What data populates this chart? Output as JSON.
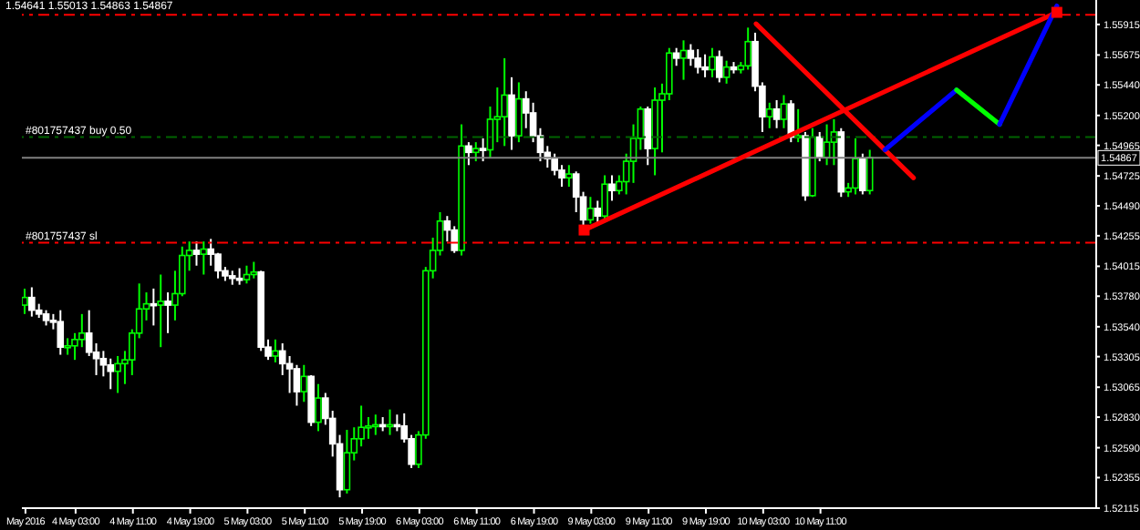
{
  "chart_data": {
    "type": "candlestick",
    "title": "1.54641 1.55013 1.54863 1.54867",
    "categories": [
      "May 2016",
      null,
      null,
      null,
      null,
      null,
      null,
      "4 May 03:00",
      null,
      null,
      null,
      null,
      null,
      null,
      null,
      "4 May 11:00",
      null,
      null,
      null,
      null,
      null,
      null,
      null,
      "4 May 19:00",
      null,
      null,
      null,
      null,
      null,
      null,
      null,
      "5 May 03:00",
      null,
      null,
      null,
      null,
      null,
      null,
      null,
      "5 May 11:00",
      null,
      null,
      null,
      null,
      null,
      null,
      null,
      "5 May 19:00",
      null,
      null,
      null,
      null,
      null,
      null,
      null,
      "6 May 03:00",
      null,
      null,
      null,
      null,
      null,
      null,
      null,
      "6 May 11:00",
      null,
      null,
      null,
      null,
      null,
      null,
      null,
      "6 May 19:00",
      null,
      null,
      null,
      null,
      null,
      null,
      null,
      "9 May 03:00",
      null,
      null,
      null,
      null,
      null,
      null,
      null,
      "9 May 11:00",
      null,
      null,
      null,
      null,
      null,
      null,
      null,
      "9 May 19:00",
      null,
      null,
      null,
      null,
      null,
      null,
      null,
      "10 May 03:00",
      null,
      null,
      null,
      null,
      null,
      null,
      null,
      "10 May 11:00",
      null,
      null,
      null,
      null,
      null,
      null,
      null,
      null,
      null,
      null,
      null,
      null,
      null,
      null,
      null,
      null,
      null,
      null,
      null,
      null,
      null,
      null,
      null,
      null,
      null,
      null,
      null,
      null,
      null,
      null,
      null,
      null,
      null,
      null,
      null,
      null,
      null,
      null
    ],
    "ylim": [
      1.52115,
      1.56107
    ],
    "yticks": [
      1.52115,
      1.52355,
      {
        "value": 1.5259,
        "label": "1.52590"
      },
      {
        "value": 1.5283,
        "label": "1.52830"
      },
      1.53065,
      1.53305,
      {
        "value": 1.5354,
        "label": "1.53540"
      },
      {
        "value": 1.5378,
        "label": "1.53780"
      },
      1.54015,
      1.54255,
      {
        "value": 1.5449,
        "label": "1.54490"
      },
      1.54725,
      1.54965,
      {
        "value": 1.552,
        "label": "1.55200"
      },
      {
        "value": 1.5544,
        "label": "1.55440"
      },
      1.55675,
      1.55915
    ],
    "series": [
      {
        "colors": [
          "#00ff00",
          "#ffffff",
          "#ffffff",
          "#ffffff",
          "#ffffff",
          "#ffffff",
          "#00ff00",
          "#00ff00",
          "#00ff00",
          "#ffffff",
          "#ffffff",
          "#ffffff",
          "#ffffff",
          "#00ff00",
          "#00ff00",
          "#00ff00",
          "#00ff00",
          "#00ff00",
          "#ffffff",
          "#00ff00",
          "#ffffff",
          "#00ff00",
          "#00ff00",
          "#00ff00",
          "#ffffff",
          "#00ff00",
          "#ffffff",
          "#ffffff",
          "#ffffff",
          "#ffffff",
          "#ffffff",
          "#00ff00",
          "#00ff00",
          "#ffffff",
          "#ffffff",
          "#00ff00",
          "#ffffff",
          "#ffffff",
          "#ffffff",
          "#00ff00",
          "#ffffff",
          "#00ff00",
          "#ffffff",
          "#ffffff",
          "#ffffff",
          "#00ff00",
          "#00ff00",
          "#00ff00",
          "#00ff00",
          "#00ff00",
          "#ffffff",
          "#00ff00",
          "#ffffff",
          "#ffffff",
          "#ffffff",
          "#00ff00",
          "#00ff00",
          "#00ff00",
          "#00ff00",
          "#ffffff",
          "#ffffff",
          "#00ff00",
          "#ffffff",
          "#00ff00",
          "#ffffff",
          "#00ff00",
          "#00ff00",
          "#00ff00",
          "#ffffff",
          "#00ff00",
          "#ffffff",
          "#ffffff",
          "#ffffff",
          "#ffffff",
          "#ffffff",
          "#ffffff",
          "#00ff00",
          "#ffffff",
          "#ffffff",
          "#00ff00",
          "#ffffff",
          "#00ff00",
          "#ffffff",
          "#00ff00",
          "#00ff00",
          "#00ff00",
          "#00ff00",
          "#ffffff",
          "#00ff00",
          "#00ff00",
          "#00ff00",
          "#ffffff",
          "#00ff00",
          "#ffffff",
          "#ffffff",
          "#ffffff",
          "#00ff00",
          "#ffffff",
          "#00ff00",
          "#ffffff",
          "#00ff00",
          "#00ff00",
          "#ffffff",
          "#ffffff",
          "#00ff00",
          "#ffffff",
          "#00ff00",
          "#ffffff",
          "#00ff00",
          "#ffffff",
          "#00ff00",
          "#ffffff",
          "#00ff00",
          "#00ff00",
          "#ffffff",
          "#00ff00",
          "#00ff00",
          "#ffffff",
          "#00ff00",
          null,
          null,
          null,
          null,
          null,
          null,
          null,
          null,
          null,
          null,
          null,
          null,
          null,
          null,
          null,
          null,
          null,
          null,
          null,
          null,
          null,
          null,
          null,
          null,
          null,
          null,
          null,
          null,
          null,
          null,
          null
        ],
        "ohlc": [
          [
            1.5371,
            1.5384,
            1.5364,
            1.5377
          ],
          [
            1.5377,
            1.5385,
            1.5362,
            1.5367
          ],
          [
            1.5367,
            1.5372,
            1.5361,
            1.5364
          ],
          [
            1.5364,
            1.5367,
            1.5355,
            1.5359
          ],
          [
            1.5359,
            1.5364,
            1.5352,
            1.5358
          ],
          [
            1.5358,
            1.5367,
            1.5332,
            1.5338
          ],
          [
            1.5338,
            1.5345,
            1.5332,
            1.5339
          ],
          [
            1.5339,
            1.5349,
            1.5328,
            1.5344
          ],
          [
            1.5344,
            1.5364,
            1.5338,
            1.5349
          ],
          [
            1.5349,
            1.5367,
            1.5331,
            1.5334
          ],
          [
            1.5334,
            1.5341,
            1.5316,
            1.5329
          ],
          [
            1.5329,
            1.5335,
            1.5315,
            1.5324
          ],
          [
            1.5324,
            1.5329,
            1.5305,
            1.5319
          ],
          [
            1.5319,
            1.5331,
            1.5302,
            1.5325
          ],
          [
            1.5325,
            1.5335,
            1.5309,
            1.5328
          ],
          [
            1.5328,
            1.5352,
            1.5316,
            1.5349
          ],
          [
            1.5349,
            1.5388,
            1.5345,
            1.5368
          ],
          [
            1.5368,
            1.5381,
            1.5359,
            1.5372
          ],
          [
            1.5372,
            1.5384,
            1.5355,
            1.5371
          ],
          [
            1.5371,
            1.5395,
            1.5338,
            1.5374
          ],
          [
            1.5374,
            1.5381,
            1.5349,
            1.5371
          ],
          [
            1.5371,
            1.5398,
            1.5359,
            1.538
          ],
          [
            1.538,
            1.5417,
            1.5378,
            1.541
          ],
          [
            1.541,
            1.5421,
            1.5398,
            1.5414
          ],
          [
            1.5414,
            1.5421,
            1.5402,
            1.5411
          ],
          [
            1.5411,
            1.5421,
            1.5395,
            1.5415
          ],
          [
            1.5415,
            1.5423,
            1.5402,
            1.5411
          ],
          [
            1.5411,
            1.5412,
            1.5392,
            1.5398
          ],
          [
            1.5398,
            1.5401,
            1.539,
            1.5394
          ],
          [
            1.5394,
            1.5398,
            1.5387,
            1.5392
          ],
          [
            1.5392,
            1.54,
            1.5387,
            1.5391
          ],
          [
            1.5391,
            1.5402,
            1.5388,
            1.5395
          ],
          [
            1.5395,
            1.5405,
            1.5392,
            1.5397
          ],
          [
            1.5397,
            1.5398,
            1.5335,
            1.5338
          ],
          [
            1.5338,
            1.5344,
            1.5328,
            1.5331
          ],
          [
            1.5331,
            1.5344,
            1.5326,
            1.5335
          ],
          [
            1.5335,
            1.5341,
            1.5316,
            1.5325
          ],
          [
            1.5325,
            1.5331,
            1.5302,
            1.5321
          ],
          [
            1.5321,
            1.5324,
            1.5292,
            1.5303
          ],
          [
            1.5303,
            1.5324,
            1.5295,
            1.5315
          ],
          [
            1.5315,
            1.5316,
            1.5276,
            1.5279
          ],
          [
            1.5279,
            1.5309,
            1.5272,
            1.5298
          ],
          [
            1.5298,
            1.5302,
            1.5277,
            1.5282
          ],
          [
            1.5282,
            1.5288,
            1.5252,
            1.5262
          ],
          [
            1.5262,
            1.5269,
            1.522,
            1.5226
          ],
          [
            1.5226,
            1.5273,
            1.5223,
            1.5255
          ],
          [
            1.5255,
            1.5275,
            1.5249,
            1.5266
          ],
          [
            1.5266,
            1.5292,
            1.526,
            1.5275
          ],
          [
            1.5275,
            1.5283,
            1.5266,
            1.5276
          ],
          [
            1.5276,
            1.5285,
            1.5269,
            1.5277
          ],
          [
            1.5277,
            1.5283,
            1.5272,
            1.5276
          ],
          [
            1.5276,
            1.5289,
            1.5269,
            1.5277
          ],
          [
            1.5277,
            1.5285,
            1.5272,
            1.5276
          ],
          [
            1.5276,
            1.5286,
            1.5263,
            1.5266
          ],
          [
            1.5266,
            1.5269,
            1.5243,
            1.5246
          ],
          [
            1.5246,
            1.5272,
            1.5243,
            1.5269
          ],
          [
            1.5269,
            1.5401,
            1.5266,
            1.5398
          ],
          [
            1.5398,
            1.5424,
            1.5392,
            1.5414
          ],
          [
            1.5414,
            1.5444,
            1.541,
            1.5437
          ],
          [
            1.5437,
            1.5441,
            1.5421,
            1.543
          ],
          [
            1.543,
            1.5433,
            1.5412,
            1.5414
          ],
          [
            1.5414,
            1.5513,
            1.541,
            1.5496
          ],
          [
            1.5496,
            1.5499,
            1.5481,
            1.5491
          ],
          [
            1.5491,
            1.5499,
            1.5484,
            1.5494
          ],
          [
            1.5494,
            1.5502,
            1.5484,
            1.5493
          ],
          [
            1.5493,
            1.5527,
            1.5487,
            1.5517
          ],
          [
            1.5517,
            1.5542,
            1.5499,
            1.5519
          ],
          [
            1.5519,
            1.5565,
            1.5496,
            1.5536
          ],
          [
            1.5536,
            1.555,
            1.5493,
            1.5504
          ],
          [
            1.5504,
            1.5546,
            1.5499,
            1.5533
          ],
          [
            1.5533,
            1.5539,
            1.551,
            1.5522
          ],
          [
            1.5522,
            1.553,
            1.5499,
            1.5504
          ],
          [
            1.5504,
            1.551,
            1.5484,
            1.5491
          ],
          [
            1.5491,
            1.5496,
            1.5479,
            1.5486
          ],
          [
            1.5486,
            1.549,
            1.5473,
            1.5477
          ],
          [
            1.5477,
            1.5481,
            1.5464,
            1.5471
          ],
          [
            1.5471,
            1.5481,
            1.5464,
            1.5474
          ],
          [
            1.5474,
            1.5476,
            1.5444,
            1.5456
          ],
          [
            1.5456,
            1.546,
            1.5433,
            1.5438
          ],
          [
            1.5438,
            1.5456,
            1.5435,
            1.5447
          ],
          [
            1.5447,
            1.5453,
            1.5435,
            1.5441
          ],
          [
            1.5441,
            1.5473,
            1.5438,
            1.5466
          ],
          [
            1.5466,
            1.5473,
            1.5453,
            1.5461
          ],
          [
            1.5461,
            1.5473,
            1.5458,
            1.5468
          ],
          [
            1.5468,
            1.549,
            1.5458,
            1.5484
          ],
          [
            1.5484,
            1.5513,
            1.5467,
            1.5502
          ],
          [
            1.5502,
            1.5527,
            1.5493,
            1.5525
          ],
          [
            1.5525,
            1.5527,
            1.5481,
            1.5494
          ],
          [
            1.5494,
            1.5542,
            1.5473,
            1.5532
          ],
          [
            1.5532,
            1.5545,
            1.5491,
            1.5537
          ],
          [
            1.5537,
            1.5573,
            1.5532,
            1.5569
          ],
          [
            1.5569,
            1.5573,
            1.5559,
            1.5565
          ],
          [
            1.5565,
            1.5579,
            1.5548,
            1.5571
          ],
          [
            1.5571,
            1.5576,
            1.5559,
            1.5565
          ],
          [
            1.5565,
            1.5572,
            1.5553,
            1.5558
          ],
          [
            1.5558,
            1.5568,
            1.555,
            1.5556
          ],
          [
            1.5556,
            1.5573,
            1.555,
            1.5566
          ],
          [
            1.5566,
            1.5571,
            1.5546,
            1.555
          ],
          [
            1.555,
            1.5563,
            1.5545,
            1.5558
          ],
          [
            1.5558,
            1.5562,
            1.5553,
            1.5556
          ],
          [
            1.5556,
            1.5562,
            1.5553,
            1.5559
          ],
          [
            1.5559,
            1.5589,
            1.5556,
            1.5578
          ],
          [
            1.5578,
            1.5585,
            1.5539,
            1.5543
          ],
          [
            1.5543,
            1.5546,
            1.5507,
            1.5519
          ],
          [
            1.5519,
            1.553,
            1.551,
            1.5525
          ],
          [
            1.5525,
            1.5532,
            1.551,
            1.5517
          ],
          [
            1.5517,
            1.5536,
            1.551,
            1.5529
          ],
          [
            1.5529,
            1.5532,
            1.5499,
            1.5503
          ],
          [
            1.5503,
            1.5525,
            1.5499,
            1.5504
          ],
          [
            1.5504,
            1.5507,
            1.5453,
            1.5457
          ],
          [
            1.5457,
            1.551,
            1.5456,
            1.5503
          ],
          [
            1.5503,
            1.5507,
            1.5484,
            1.5487
          ],
          [
            1.5487,
            1.5513,
            1.5481,
            1.5499
          ],
          [
            1.5499,
            1.5517,
            1.5481,
            1.5507
          ],
          [
            1.5507,
            1.551,
            1.5456,
            1.546
          ],
          [
            1.546,
            1.5467,
            1.5456,
            1.5463
          ],
          [
            1.5463,
            1.5502,
            1.5458,
            1.5486
          ],
          [
            1.5486,
            1.549,
            1.5458,
            1.5461
          ],
          [
            1.5461,
            1.5493,
            1.5458,
            1.5487
          ],
          null,
          null,
          null,
          null,
          null,
          null,
          null,
          null,
          null,
          null,
          null,
          null,
          null,
          null,
          null,
          null,
          null,
          null,
          null,
          null,
          null,
          null,
          null,
          null,
          null,
          null,
          null,
          null,
          null,
          null,
          null
        ]
      },
      {
        "type": "line",
        "color": "#ff0000",
        "marker": "square",
        "values": [
          null,
          null,
          null,
          null,
          null,
          null,
          null,
          null,
          null,
          null,
          null,
          null,
          null,
          null,
          null,
          null,
          null,
          null,
          null,
          null,
          null,
          null,
          null,
          null,
          null,
          null,
          null,
          null,
          null,
          null,
          null,
          null,
          null,
          null,
          null,
          null,
          null,
          null,
          null,
          null,
          null,
          null,
          null,
          null,
          null,
          null,
          null,
          null,
          null,
          null,
          null,
          null,
          null,
          null,
          null,
          null,
          null,
          null,
          null,
          null,
          null,
          null,
          null,
          null,
          null,
          null,
          null,
          null,
          null,
          null,
          null,
          null,
          null,
          null,
          null,
          null,
          null,
          null,
          1.543,
          null,
          null,
          null,
          null,
          null,
          null,
          null,
          null,
          null,
          null,
          null,
          null,
          null,
          null,
          null,
          null,
          null,
          null,
          null,
          null,
          null,
          null,
          null,
          null,
          null,
          null,
          null,
          null,
          null,
          null,
          null,
          null,
          null,
          null,
          null,
          null,
          null,
          null,
          null,
          null,
          null,
          null,
          null,
          null,
          null,
          null,
          null,
          null,
          null,
          null,
          null,
          null,
          null,
          null,
          null,
          null,
          null,
          null,
          null,
          null,
          null,
          null,
          null,
          null,
          null,
          1.5601,
          null,
          null,
          null,
          null,
          null
        ]
      },
      {
        "type": "line",
        "color": "#ff0000",
        "values": [
          null,
          null,
          null,
          null,
          null,
          null,
          null,
          null,
          null,
          null,
          null,
          null,
          null,
          null,
          null,
          null,
          null,
          null,
          null,
          null,
          null,
          null,
          null,
          null,
          null,
          null,
          null,
          null,
          null,
          null,
          null,
          null,
          null,
          null,
          null,
          null,
          null,
          null,
          null,
          null,
          null,
          null,
          null,
          null,
          null,
          null,
          null,
          null,
          null,
          null,
          null,
          null,
          null,
          null,
          null,
          null,
          null,
          null,
          null,
          null,
          null,
          null,
          null,
          null,
          null,
          null,
          null,
          null,
          null,
          null,
          null,
          null,
          null,
          null,
          null,
          null,
          null,
          null,
          null,
          null,
          null,
          null,
          null,
          null,
          null,
          null,
          null,
          null,
          null,
          null,
          null,
          null,
          null,
          null,
          null,
          null,
          null,
          null,
          null,
          null,
          null,
          null,
          1.5592,
          null,
          null,
          null,
          null,
          null,
          null,
          null,
          null,
          null,
          null,
          null,
          null,
          null,
          null,
          null,
          null,
          null,
          null,
          null,
          null,
          null,
          1.5471,
          null,
          null,
          null,
          null,
          null,
          null,
          null,
          null,
          null,
          null,
          null,
          null,
          null,
          null,
          null,
          null,
          null,
          null,
          null,
          null,
          null,
          null,
          null,
          null,
          null
        ]
      },
      {
        "type": "line",
        "color": "#0000ff",
        "values": [
          null,
          null,
          null,
          null,
          null,
          null,
          null,
          null,
          null,
          null,
          null,
          null,
          null,
          null,
          null,
          null,
          null,
          null,
          null,
          null,
          null,
          null,
          null,
          null,
          null,
          null,
          null,
          null,
          null,
          null,
          null,
          null,
          null,
          null,
          null,
          null,
          null,
          null,
          null,
          null,
          null,
          null,
          null,
          null,
          null,
          null,
          null,
          null,
          null,
          null,
          null,
          null,
          null,
          null,
          null,
          null,
          null,
          null,
          null,
          null,
          null,
          null,
          null,
          null,
          null,
          null,
          null,
          null,
          null,
          null,
          null,
          null,
          null,
          null,
          null,
          null,
          null,
          null,
          null,
          null,
          null,
          null,
          null,
          null,
          null,
          null,
          null,
          null,
          null,
          null,
          null,
          null,
          null,
          null,
          null,
          null,
          null,
          null,
          null,
          null,
          null,
          null,
          null,
          null,
          null,
          null,
          null,
          null,
          null,
          null,
          null,
          null,
          null,
          null,
          null,
          null,
          null,
          null,
          null,
          null,
          1.5493,
          null,
          null,
          null,
          null,
          null,
          null,
          null,
          null,
          null,
          1.554,
          null,
          null,
          null,
          null,
          null,
          null,
          null,
          null,
          null,
          null,
          null,
          null,
          null,
          null,
          null,
          null,
          null,
          null,
          null
        ]
      },
      {
        "type": "line",
        "color": "#00ff00",
        "values": [
          null,
          null,
          null,
          null,
          null,
          null,
          null,
          null,
          null,
          null,
          null,
          null,
          null,
          null,
          null,
          null,
          null,
          null,
          null,
          null,
          null,
          null,
          null,
          null,
          null,
          null,
          null,
          null,
          null,
          null,
          null,
          null,
          null,
          null,
          null,
          null,
          null,
          null,
          null,
          null,
          null,
          null,
          null,
          null,
          null,
          null,
          null,
          null,
          null,
          null,
          null,
          null,
          null,
          null,
          null,
          null,
          null,
          null,
          null,
          null,
          null,
          null,
          null,
          null,
          null,
          null,
          null,
          null,
          null,
          null,
          null,
          null,
          null,
          null,
          null,
          null,
          null,
          null,
          null,
          null,
          null,
          null,
          null,
          null,
          null,
          null,
          null,
          null,
          null,
          null,
          null,
          null,
          null,
          null,
          null,
          null,
          null,
          null,
          null,
          null,
          null,
          null,
          null,
          null,
          null,
          null,
          null,
          null,
          null,
          null,
          null,
          null,
          null,
          null,
          null,
          null,
          null,
          null,
          null,
          null,
          null,
          null,
          null,
          null,
          null,
          null,
          null,
          null,
          null,
          null,
          1.554,
          null,
          null,
          null,
          null,
          null,
          1.5513,
          null,
          null,
          null,
          null,
          null,
          null,
          null,
          null,
          null,
          null,
          null,
          null,
          null
        ]
      },
      {
        "type": "line",
        "color": "#0000ff",
        "values": [
          null,
          null,
          null,
          null,
          null,
          null,
          null,
          null,
          null,
          null,
          null,
          null,
          null,
          null,
          null,
          null,
          null,
          null,
          null,
          null,
          null,
          null,
          null,
          null,
          null,
          null,
          null,
          null,
          null,
          null,
          null,
          null,
          null,
          null,
          null,
          null,
          null,
          null,
          null,
          null,
          null,
          null,
          null,
          null,
          null,
          null,
          null,
          null,
          null,
          null,
          null,
          null,
          null,
          null,
          null,
          null,
          null,
          null,
          null,
          null,
          null,
          null,
          null,
          null,
          null,
          null,
          null,
          null,
          null,
          null,
          null,
          null,
          null,
          null,
          null,
          null,
          null,
          null,
          null,
          null,
          null,
          null,
          null,
          null,
          null,
          null,
          null,
          null,
          null,
          null,
          null,
          null,
          null,
          null,
          null,
          null,
          null,
          null,
          null,
          null,
          null,
          null,
          null,
          null,
          null,
          null,
          null,
          null,
          null,
          null,
          null,
          null,
          null,
          null,
          null,
          null,
          null,
          null,
          null,
          null,
          null,
          null,
          null,
          null,
          null,
          null,
          null,
          null,
          null,
          null,
          null,
          null,
          null,
          null,
          null,
          null,
          1.5513,
          null,
          null,
          null,
          null,
          null,
          null,
          null,
          1.5606,
          null,
          null,
          null,
          null,
          null
        ]
      }
    ],
    "ref_lines": [
      {
        "axis": "y",
        "value": 1.5599,
        "color": "#ff0000",
        "line_style": "dashed"
      },
      {
        "axis": "y",
        "value": 1.5503,
        "label": "#801757437 buy 0.50",
        "color": "#006400",
        "line_style": "dashed"
      },
      {
        "axis": "y",
        "value": 1.54867,
        "label": "1.54867",
        "color": "#808080",
        "line_style": "solid"
      },
      {
        "axis": "y",
        "value": 1.542,
        "label": "#801757437 sl",
        "color": "#ff0000",
        "line_style": "dashed"
      }
    ]
  }
}
